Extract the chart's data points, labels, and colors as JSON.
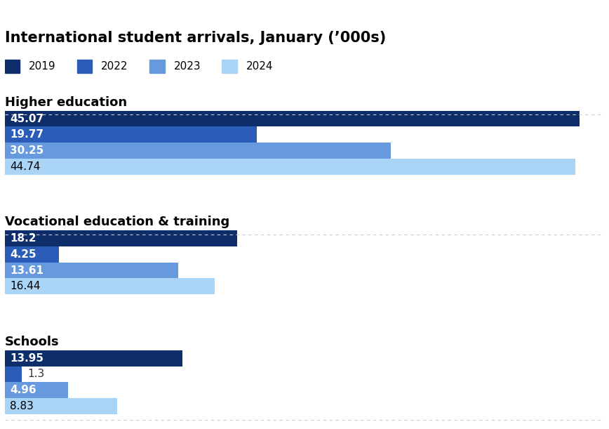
{
  "title": "International student arrivals, January (’000s)",
  "categories": [
    "Higher education",
    "Vocational education & training",
    "Schools"
  ],
  "years": [
    "2019",
    "2022",
    "2023",
    "2024"
  ],
  "colors": [
    "#0d2d6b",
    "#2b5cb8",
    "#6699dd",
    "#aad4f5"
  ],
  "values": {
    "Higher education": [
      45.07,
      19.77,
      30.25,
      44.74
    ],
    "Vocational education & training": [
      18.2,
      4.25,
      13.61,
      16.44
    ],
    "Schools": [
      13.95,
      1.3,
      4.96,
      8.83
    ]
  },
  "label_colors": {
    "Higher education": [
      "white",
      "white",
      "white",
      "black"
    ],
    "Vocational education & training": [
      "white",
      "white",
      "white",
      "black"
    ],
    "Schools": [
      "white",
      "black",
      "white",
      "black"
    ]
  },
  "background_color": "#ffffff",
  "bar_height": 0.8,
  "section_title_fontsize": 13,
  "bar_label_fontsize": 11,
  "title_fontsize": 15,
  "legend_fontsize": 11,
  "x_max": 47
}
